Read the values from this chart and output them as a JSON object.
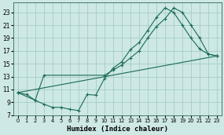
{
  "xlabel": "Humidex (Indice chaleur)",
  "background_color": "#cde8e5",
  "grid_color": "#9ec8c4",
  "line_color": "#1a6b5a",
  "xlim": [
    -0.5,
    23.5
  ],
  "ylim": [
    7,
    24.5
  ],
  "yticks": [
    7,
    9,
    11,
    13,
    15,
    17,
    19,
    21,
    23
  ],
  "xticks": [
    0,
    1,
    2,
    3,
    4,
    5,
    6,
    7,
    8,
    9,
    10,
    11,
    12,
    13,
    14,
    15,
    16,
    17,
    18,
    19,
    20,
    21,
    22,
    23
  ],
  "curve1_x": [
    0,
    1,
    2,
    3,
    4,
    5,
    6,
    7,
    8,
    9,
    10,
    11,
    12,
    13,
    14,
    15,
    16,
    17,
    18,
    19,
    20,
    21,
    22,
    23
  ],
  "curve1_y": [
    10.5,
    10.2,
    9.3,
    8.7,
    8.2,
    8.2,
    7.9,
    7.7,
    10.2,
    10.1,
    12.7,
    14.3,
    15.3,
    17.2,
    18.3,
    20.2,
    22.2,
    23.7,
    23.0,
    21.0,
    19.0,
    17.3,
    16.5,
    16.2
  ],
  "curve2_x": [
    0,
    2,
    3,
    10,
    11,
    12,
    13,
    14,
    15,
    16,
    17,
    18,
    19,
    20,
    21,
    22,
    23
  ],
  "curve2_y": [
    10.5,
    9.3,
    13.2,
    13.2,
    14.0,
    14.8,
    15.9,
    17.0,
    19.0,
    20.8,
    22.0,
    23.7,
    23.0,
    21.0,
    19.0,
    16.5,
    16.2
  ],
  "curve3_x": [
    0,
    23
  ],
  "curve3_y": [
    10.5,
    16.2
  ]
}
